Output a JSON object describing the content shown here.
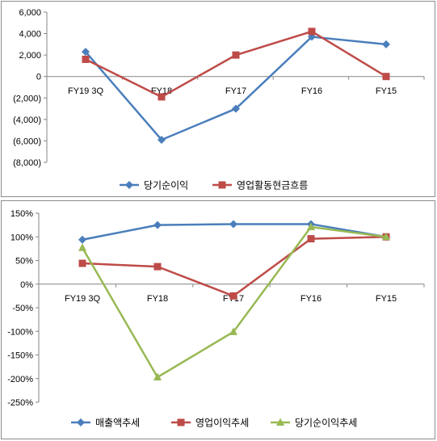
{
  "chart_data": [
    {
      "type": "line",
      "categories": [
        "FY19 3Q",
        "FY18",
        "FY17",
        "FY16",
        "FY15"
      ],
      "ylim": [
        -8000,
        6000
      ],
      "yticks": [
        {
          "value": 6000,
          "label": "6,000",
          "negative": false
        },
        {
          "value": 4000,
          "label": "4,000",
          "negative": false
        },
        {
          "value": 2000,
          "label": "2,000",
          "negative": false
        },
        {
          "value": 0,
          "label": "0",
          "negative": false
        },
        {
          "value": -2000,
          "label": "(2,000)",
          "negative": true
        },
        {
          "value": -4000,
          "label": "(4,000)",
          "negative": true
        },
        {
          "value": -6000,
          "label": "(6,000)",
          "negative": true
        },
        {
          "value": -8000,
          "label": "(8,000)",
          "negative": true
        }
      ],
      "negative_label_color": "#c00000",
      "grid": false,
      "legend_position": "bottom",
      "series": [
        {
          "name": "당기순이익",
          "color": "#4a7ebb",
          "marker": "diamond",
          "values": [
            2300,
            -5900,
            -3000,
            3700,
            3000
          ]
        },
        {
          "name": "영업활동현금흐름",
          "color": "#be4b48",
          "marker": "square",
          "values": [
            1600,
            -1900,
            2000,
            4200,
            0
          ]
        }
      ]
    },
    {
      "type": "line",
      "categories": [
        "FY19 3Q",
        "FY18",
        "FY17",
        "FY16",
        "FY15"
      ],
      "ylim": [
        -250,
        150
      ],
      "yticks": [
        {
          "value": 150,
          "label": "150%"
        },
        {
          "value": 100,
          "label": "100%"
        },
        {
          "value": 50,
          "label": "50%"
        },
        {
          "value": 0,
          "label": "0%"
        },
        {
          "value": -50,
          "label": "-50%"
        },
        {
          "value": -100,
          "label": "-100%"
        },
        {
          "value": -150,
          "label": "-150%"
        },
        {
          "value": -200,
          "label": "-200%"
        },
        {
          "value": -250,
          "label": "-250%"
        }
      ],
      "grid": false,
      "legend_position": "bottom",
      "series": [
        {
          "name": "매출액추세",
          "color": "#4a7ebb",
          "marker": "diamond",
          "values": [
            94,
            125,
            127,
            127,
            100
          ]
        },
        {
          "name": "영업이익추세",
          "color": "#be4b48",
          "marker": "square",
          "values": [
            44,
            37,
            -25,
            96,
            100
          ]
        },
        {
          "name": "당기순이익추세",
          "color": "#98b954",
          "marker": "triangle",
          "values": [
            77,
            -197,
            -101,
            121,
            100
          ]
        }
      ]
    }
  ]
}
